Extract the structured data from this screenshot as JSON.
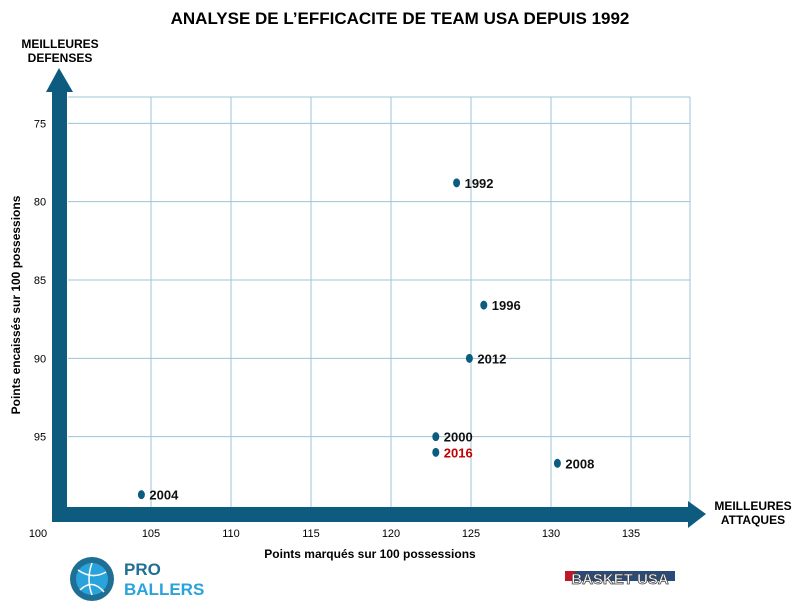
{
  "chart_data": {
    "type": "scatter",
    "title": "ANALYSE DE L’EFFICACITE DE TEAM USA DEPUIS 1992",
    "xlabel": "Points marqués sur 100 possessions",
    "ylabel": "Points encaissés sur 100 possessions",
    "y_axis_end_label": [
      "MEILLEURES",
      "DEFENSES"
    ],
    "x_axis_end_label": [
      "MEILLEURES",
      "ATTAQUES"
    ],
    "xlim": [
      100,
      139
    ],
    "ylim": [
      73,
      100
    ],
    "y_inverted": true,
    "grid": true,
    "xticks": [
      100,
      105,
      110,
      115,
      120,
      125,
      130,
      135
    ],
    "yticks": [
      75,
      80,
      85,
      90,
      95
    ],
    "points": [
      {
        "label": "1992",
        "x": 124.1,
        "y": 78.8,
        "highlight": false
      },
      {
        "label": "1996",
        "x": 125.8,
        "y": 86.6,
        "highlight": false
      },
      {
        "label": "2012",
        "x": 124.9,
        "y": 90.0,
        "highlight": false
      },
      {
        "label": "2000",
        "x": 122.8,
        "y": 95.0,
        "highlight": false
      },
      {
        "label": "2016",
        "x": 122.8,
        "y": 96.0,
        "highlight": true
      },
      {
        "label": "2008",
        "x": 130.4,
        "y": 96.7,
        "highlight": false
      },
      {
        "label": "2004",
        "x": 104.4,
        "y": 98.7,
        "highlight": false
      }
    ],
    "colors": {
      "point": "#0d5c80",
      "axis": "#0d5c80",
      "grid": "#9cc5d8",
      "highlight_label": "#c00000",
      "label": "#111111"
    }
  },
  "logos": {
    "left": "PRO BALLERS",
    "left_line1": "PRO",
    "left_line2": "BALLERS",
    "right": "BASKET USA"
  }
}
